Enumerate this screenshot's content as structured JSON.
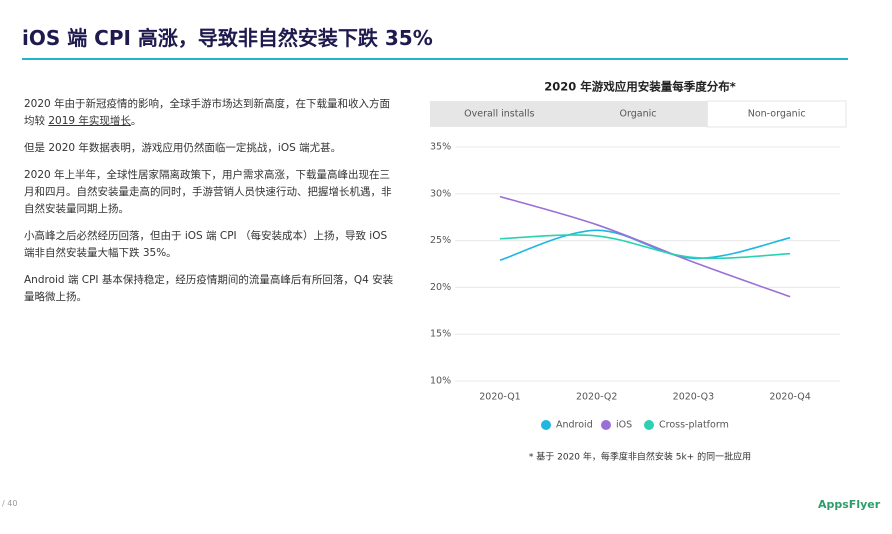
{
  "header": {
    "title": "iOS 端 CPI 高涨，导致非自然安装下跌 35%"
  },
  "paragraphs": [
    [
      "2020 年由于新冠疫情的影响，全球手游市场达到新高度，在下载量和收入方面均较 ",
      "2019 年实现增长",
      "。"
    ],
    [
      "但是 2020 年数据表明，游戏应用仍然面临一定挑战，iOS 端尤甚。"
    ],
    [
      "2020 年上半年，全球性居家隔离政策下，用户需求高涨，下载量高峰出现在三月和四月。自然安装量走高的同时，手游营销人员快速行动、把握增长机遇，非自然安装量同期上扬。"
    ],
    [
      "小高峰之后必然经历回落，但由于 iOS 端 CPI （每安装成本）上扬，导致 iOS 端非自然安装量大幅下跌 35%。"
    ],
    [
      "Android 端 CPI 基本保持稳定，经历疫情期间的流量高峰后有所回落，Q4 安装量略微上扬。"
    ]
  ],
  "tabs": [
    "Overall installs",
    "Organic",
    "Non-organic"
  ],
  "chart_data": {
    "type": "line",
    "title": "2020 年游戏应用安装量每季度分布*",
    "categories": [
      "2020-Q1",
      "2020-Q2",
      "2020-Q3",
      "2020-Q4"
    ],
    "series": [
      {
        "name": "Android",
        "color": "#1fb6e0",
        "values": [
          22.9,
          26.1,
          23.1,
          25.3
        ]
      },
      {
        "name": "iOS",
        "color": "#9b6fd6",
        "values": [
          29.7,
          26.7,
          22.7,
          19.0
        ]
      },
      {
        "name": "Cross-platform",
        "color": "#2bd1b0",
        "values": [
          25.2,
          25.5,
          23.2,
          23.6
        ]
      }
    ],
    "ylim": [
      10,
      35
    ],
    "yticks": [
      {
        "value": 10,
        "label": "10%"
      },
      {
        "value": 15,
        "label": "15%"
      },
      {
        "value": 20,
        "label": "20%"
      },
      {
        "value": 25,
        "label": "25%"
      },
      {
        "value": 30,
        "label": "30%"
      },
      {
        "value": 35,
        "label": "35%"
      }
    ],
    "grid": true,
    "footnote": "* 基于 2020 年，每季度非自然安装 5k+ 的同一批应用"
  },
  "footer": {
    "page": "/ 40",
    "logo": "AppsFlyer"
  }
}
